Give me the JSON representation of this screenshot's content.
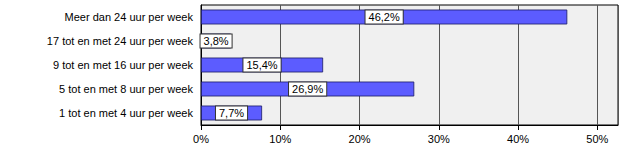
{
  "chart_data": {
    "type": "bar",
    "orientation": "horizontal",
    "categories": [
      "Meer dan 24 uur per week",
      "17 tot en met 24 uur per week",
      "9 tot en met 16 uur per week",
      "5 tot en met 8 uur per week",
      "1 tot en met 4 uur per week"
    ],
    "values": [
      46.2,
      3.8,
      15.4,
      26.9,
      7.7
    ],
    "value_labels": [
      "46,2%",
      "3,8%",
      "15,4%",
      "26,9%",
      "7,7%"
    ],
    "color": "#5c5cff",
    "xlim": [
      0,
      52.6
    ],
    "xticks": [
      {
        "value": 0,
        "label": "0%"
      },
      {
        "value": 10,
        "label": "10%"
      },
      {
        "value": 20,
        "label": "20%"
      },
      {
        "value": 30,
        "label": "30%"
      },
      {
        "value": 40,
        "label": "40%"
      },
      {
        "value": 50,
        "label": "50%"
      }
    ],
    "grid": true,
    "data_labels": true
  }
}
